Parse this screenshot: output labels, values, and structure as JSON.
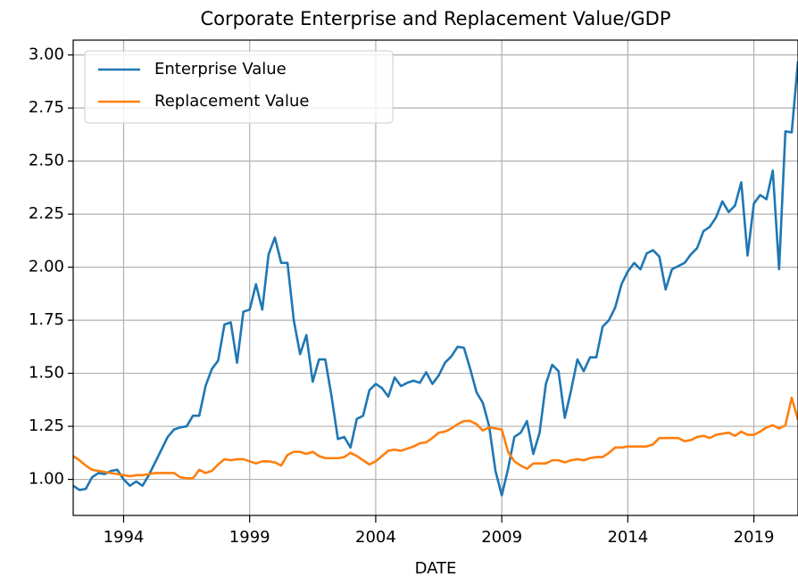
{
  "chart_data": {
    "type": "line",
    "title": "Corporate Enterprise and Replacement Value/GDP",
    "xlabel": "DATE",
    "x": [
      1992.0,
      1992.25,
      1992.5,
      1992.75,
      1993.0,
      1993.25,
      1993.5,
      1993.75,
      1994.0,
      1994.25,
      1994.5,
      1994.75,
      1995.0,
      1995.25,
      1995.5,
      1995.75,
      1996.0,
      1996.25,
      1996.5,
      1996.75,
      1997.0,
      1997.25,
      1997.5,
      1997.75,
      1998.0,
      1998.25,
      1998.5,
      1998.75,
      1999.0,
      1999.25,
      1999.5,
      1999.75,
      2000.0,
      2000.25,
      2000.5,
      2000.75,
      2001.0,
      2001.25,
      2001.5,
      2001.75,
      2002.0,
      2002.25,
      2002.5,
      2002.75,
      2003.0,
      2003.25,
      2003.5,
      2003.75,
      2004.0,
      2004.25,
      2004.5,
      2004.75,
      2005.0,
      2005.25,
      2005.5,
      2005.75,
      2006.0,
      2006.25,
      2006.5,
      2006.75,
      2007.0,
      2007.25,
      2007.5,
      2007.75,
      2008.0,
      2008.25,
      2008.5,
      2008.75,
      2009.0,
      2009.25,
      2009.5,
      2009.75,
      2010.0,
      2010.25,
      2010.5,
      2010.75,
      2011.0,
      2011.25,
      2011.5,
      2011.75,
      2012.0,
      2012.25,
      2012.5,
      2012.75,
      2013.0,
      2013.25,
      2013.5,
      2013.75,
      2014.0,
      2014.25,
      2014.5,
      2014.75,
      2015.0,
      2015.25,
      2015.5,
      2015.75,
      2016.0,
      2016.25,
      2016.5,
      2016.75,
      2017.0,
      2017.25,
      2017.5,
      2017.75,
      2018.0,
      2018.25,
      2018.5,
      2018.75,
      2019.0,
      2019.25,
      2019.5,
      2019.75,
      2020.0,
      2020.25,
      2020.5,
      2020.75
    ],
    "series": [
      {
        "name": "Enterprise Value",
        "color": "#1f77b4",
        "values": [
          0.97,
          0.95,
          0.955,
          1.01,
          1.03,
          1.025,
          1.04,
          1.045,
          1.0,
          0.97,
          0.99,
          0.97,
          1.02,
          1.08,
          1.14,
          1.2,
          1.235,
          1.245,
          1.25,
          1.3,
          1.3,
          1.44,
          1.52,
          1.56,
          1.73,
          1.74,
          1.55,
          1.79,
          1.8,
          1.92,
          1.8,
          2.06,
          2.14,
          2.02,
          2.02,
          1.75,
          1.59,
          1.68,
          1.46,
          1.565,
          1.565,
          1.39,
          1.19,
          1.2,
          1.15,
          1.285,
          1.3,
          1.42,
          1.45,
          1.43,
          1.39,
          1.48,
          1.44,
          1.455,
          1.465,
          1.455,
          1.505,
          1.45,
          1.49,
          1.55,
          1.58,
          1.625,
          1.62,
          1.52,
          1.41,
          1.36,
          1.25,
          1.04,
          0.925,
          1.05,
          1.2,
          1.22,
          1.275,
          1.12,
          1.22,
          1.45,
          1.54,
          1.51,
          1.29,
          1.42,
          1.565,
          1.51,
          1.575,
          1.575,
          1.72,
          1.75,
          1.81,
          1.92,
          1.98,
          2.02,
          1.99,
          2.065,
          2.08,
          2.05,
          1.895,
          1.99,
          2.005,
          2.02,
          2.06,
          2.09,
          2.17,
          2.19,
          2.235,
          2.31,
          2.26,
          2.29,
          2.4,
          2.055,
          2.3,
          2.34,
          2.32,
          2.455,
          1.99,
          2.64,
          2.635,
          2.97
        ]
      },
      {
        "name": "Replacement Value",
        "color": "#ff7f0e",
        "values": [
          1.11,
          1.09,
          1.065,
          1.045,
          1.04,
          1.035,
          1.03,
          1.025,
          1.02,
          1.015,
          1.02,
          1.02,
          1.025,
          1.03,
          1.03,
          1.03,
          1.03,
          1.01,
          1.005,
          1.005,
          1.045,
          1.03,
          1.04,
          1.07,
          1.095,
          1.09,
          1.095,
          1.095,
          1.085,
          1.075,
          1.085,
          1.085,
          1.08,
          1.065,
          1.115,
          1.13,
          1.13,
          1.12,
          1.13,
          1.11,
          1.1,
          1.1,
          1.1,
          1.105,
          1.125,
          1.11,
          1.09,
          1.07,
          1.085,
          1.11,
          1.135,
          1.14,
          1.135,
          1.145,
          1.155,
          1.17,
          1.175,
          1.195,
          1.22,
          1.225,
          1.24,
          1.26,
          1.275,
          1.275,
          1.26,
          1.23,
          1.245,
          1.24,
          1.235,
          1.13,
          1.085,
          1.065,
          1.05,
          1.075,
          1.075,
          1.075,
          1.09,
          1.09,
          1.08,
          1.09,
          1.095,
          1.09,
          1.1,
          1.105,
          1.105,
          1.125,
          1.15,
          1.15,
          1.155,
          1.155,
          1.155,
          1.155,
          1.165,
          1.195,
          1.195,
          1.195,
          1.195,
          1.18,
          1.185,
          1.2,
          1.205,
          1.195,
          1.21,
          1.215,
          1.22,
          1.205,
          1.225,
          1.21,
          1.21,
          1.225,
          1.245,
          1.255,
          1.24,
          1.255,
          1.385,
          1.28
        ]
      }
    ],
    "xlim": [
      1992,
      2020.75
    ],
    "xticks": [
      1994,
      1999,
      2004,
      2009,
      2014,
      2019
    ],
    "ylim": [
      0.83,
      3.07
    ],
    "yticks": [
      {
        "value": 1.0,
        "label": "1.00"
      },
      1.25,
      {
        "value": 1.5,
        "label": "1.50"
      },
      1.75,
      {
        "value": 2.0,
        "label": "2.00"
      },
      2.25,
      {
        "value": 2.5,
        "label": "2.50"
      },
      2.75,
      {
        "value": 3.0,
        "label": "3.00"
      }
    ],
    "grid": true,
    "legend": "upper left"
  }
}
